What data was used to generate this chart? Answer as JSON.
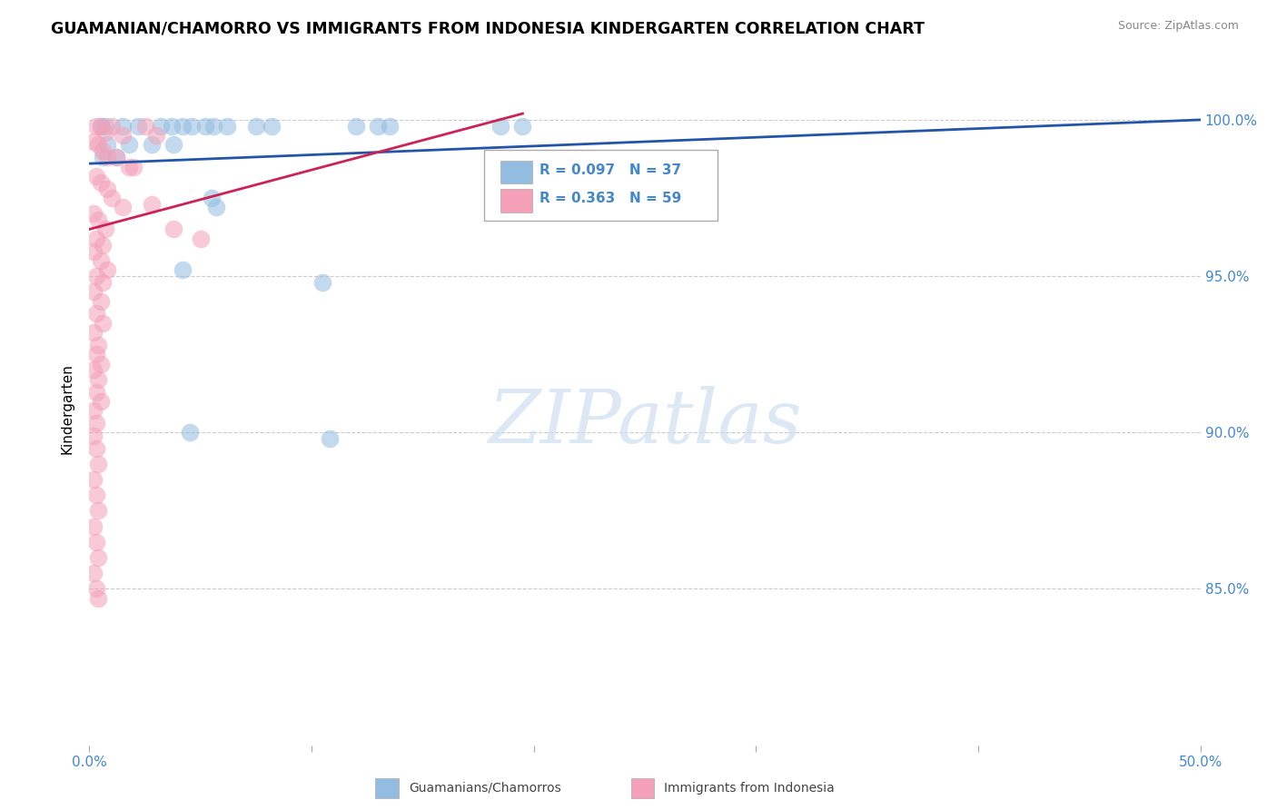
{
  "title": "GUAMANIAN/CHAMORRO VS IMMIGRANTS FROM INDONESIA KINDERGARTEN CORRELATION CHART",
  "source": "Source: ZipAtlas.com",
  "ylabel": "Kindergarten",
  "xlim": [
    0.0,
    50.0
  ],
  "ylim": [
    80.0,
    101.5
  ],
  "x_ticks": [
    0.0,
    10.0,
    20.0,
    30.0,
    40.0,
    50.0
  ],
  "x_tick_labels": [
    "0.0%",
    "",
    "",
    "",
    "",
    "50.0%"
  ],
  "y_ticks": [
    85.0,
    90.0,
    95.0,
    100.0
  ],
  "y_tick_labels": [
    "85.0%",
    "90.0%",
    "95.0%",
    "100.0%"
  ],
  "watermark_text": "ZIPatlas",
  "legend_r_blue": "R = 0.097",
  "legend_n_blue": "N = 37",
  "legend_r_pink": "R = 0.363",
  "legend_n_pink": "N = 59",
  "legend_label_blue": "Guamanians/Chamorros",
  "legend_label_pink": "Immigrants from Indonesia",
  "blue_scatter": [
    [
      0.5,
      99.8
    ],
    [
      0.7,
      99.8
    ],
    [
      1.5,
      99.8
    ],
    [
      2.2,
      99.8
    ],
    [
      3.2,
      99.8
    ],
    [
      3.7,
      99.8
    ],
    [
      4.2,
      99.8
    ],
    [
      4.6,
      99.8
    ],
    [
      5.2,
      99.8
    ],
    [
      5.6,
      99.8
    ],
    [
      6.2,
      99.8
    ],
    [
      7.5,
      99.8
    ],
    [
      8.2,
      99.8
    ],
    [
      12.0,
      99.8
    ],
    [
      13.0,
      99.8
    ],
    [
      13.5,
      99.8
    ],
    [
      18.5,
      99.8
    ],
    [
      19.5,
      99.8
    ],
    [
      0.8,
      99.2
    ],
    [
      1.8,
      99.2
    ],
    [
      2.8,
      99.2
    ],
    [
      3.8,
      99.2
    ],
    [
      0.6,
      98.8
    ],
    [
      1.2,
      98.8
    ],
    [
      5.5,
      97.5
    ],
    [
      5.7,
      97.2
    ],
    [
      4.2,
      95.2
    ],
    [
      10.5,
      94.8
    ],
    [
      4.5,
      90.0
    ],
    [
      10.8,
      89.8
    ]
  ],
  "pink_scatter": [
    [
      0.3,
      99.8
    ],
    [
      0.5,
      99.8
    ],
    [
      0.7,
      99.6
    ],
    [
      1.0,
      99.8
    ],
    [
      1.5,
      99.5
    ],
    [
      2.5,
      99.8
    ],
    [
      3.0,
      99.5
    ],
    [
      0.2,
      99.3
    ],
    [
      0.4,
      99.2
    ],
    [
      0.6,
      99.0
    ],
    [
      0.8,
      98.8
    ],
    [
      1.2,
      98.8
    ],
    [
      1.8,
      98.5
    ],
    [
      2.0,
      98.5
    ],
    [
      0.3,
      98.2
    ],
    [
      0.5,
      98.0
    ],
    [
      0.8,
      97.8
    ],
    [
      1.0,
      97.5
    ],
    [
      1.5,
      97.2
    ],
    [
      2.8,
      97.3
    ],
    [
      0.2,
      97.0
    ],
    [
      0.4,
      96.8
    ],
    [
      0.7,
      96.5
    ],
    [
      0.3,
      96.2
    ],
    [
      0.6,
      96.0
    ],
    [
      0.2,
      95.8
    ],
    [
      0.5,
      95.5
    ],
    [
      0.8,
      95.2
    ],
    [
      0.3,
      95.0
    ],
    [
      0.6,
      94.8
    ],
    [
      0.2,
      94.5
    ],
    [
      0.5,
      94.2
    ],
    [
      0.3,
      93.8
    ],
    [
      0.6,
      93.5
    ],
    [
      0.2,
      93.2
    ],
    [
      0.4,
      92.8
    ],
    [
      0.3,
      92.5
    ],
    [
      0.5,
      92.2
    ],
    [
      0.2,
      92.0
    ],
    [
      0.4,
      91.7
    ],
    [
      0.3,
      91.3
    ],
    [
      0.5,
      91.0
    ],
    [
      0.2,
      90.7
    ],
    [
      0.3,
      90.3
    ],
    [
      0.2,
      89.9
    ],
    [
      0.3,
      89.5
    ],
    [
      0.4,
      89.0
    ],
    [
      0.2,
      88.5
    ],
    [
      0.3,
      88.0
    ],
    [
      0.4,
      87.5
    ],
    [
      0.2,
      87.0
    ],
    [
      0.3,
      86.5
    ],
    [
      0.4,
      86.0
    ],
    [
      0.2,
      85.5
    ],
    [
      0.3,
      85.0
    ],
    [
      0.4,
      84.7
    ],
    [
      3.8,
      96.5
    ],
    [
      5.0,
      96.2
    ]
  ],
  "blue_line_x": [
    0.0,
    50.0
  ],
  "blue_line_y": [
    98.6,
    100.0
  ],
  "pink_line_x": [
    0.0,
    19.5
  ],
  "pink_line_y": [
    96.5,
    100.2
  ],
  "dot_color_blue": "#92bce0",
  "dot_color_pink": "#f4a0b8",
  "line_color_blue": "#2255aa",
  "line_color_pink": "#cc2255",
  "grid_color": "#cccccc",
  "bg_color": "#ffffff",
  "title_fontsize": 12.5,
  "axis_color": "#4488cc"
}
